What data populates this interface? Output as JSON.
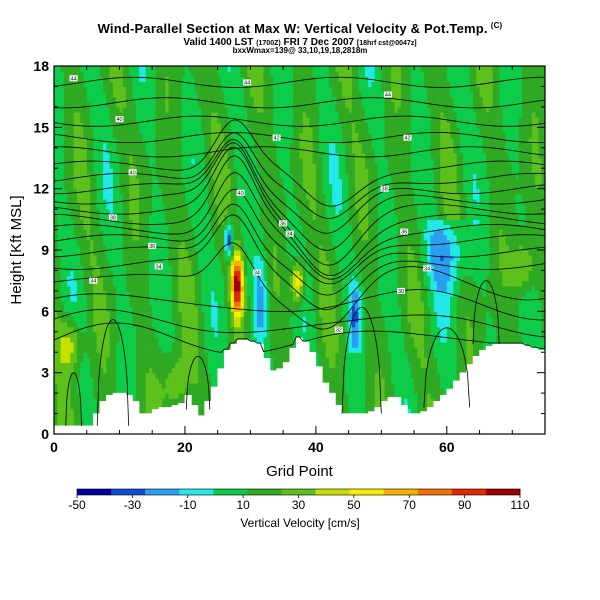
{
  "title": {
    "main": "Wind-Parallel Section at Max W: Vertical Velocity & Pot.Temp.",
    "unit": "(C)",
    "valid_prefix": "Valid 1400 LST",
    "valid_z": "(1700Z)",
    "valid_date": "FRI 7 Dec 2007",
    "valid_run": "[18hrf cst@0047z]",
    "info": "bxxWmax=139@ 33,10,19,18,2818m"
  },
  "chart_data": {
    "type": "heatmap",
    "xlabel": "Grid Point",
    "ylabel": "Height [Kft MSL]",
    "xlim": [
      0,
      75
    ],
    "ylim": [
      0,
      18
    ],
    "xticks": [
      0,
      20,
      40,
      60
    ],
    "yticks": [
      0,
      3,
      6,
      9,
      12,
      15,
      18
    ],
    "colorbar": {
      "label": "Vertical Velocity [cm/s]",
      "ticks": [
        -50,
        -30,
        -10,
        10,
        30,
        50,
        70,
        90,
        110
      ],
      "range": [
        -50,
        110
      ],
      "colors": [
        "#00009e",
        "#0d4dd6",
        "#2a9ef0",
        "#22e8ea",
        "#0ccc4a",
        "#2faa22",
        "#5ec01a",
        "#c8e000",
        "#f8f000",
        "#f8b000",
        "#f07000",
        "#e02800",
        "#a00000"
      ]
    },
    "terrain_top_kft": [
      [
        0,
        0.4
      ],
      [
        1,
        0.4
      ],
      [
        2,
        0.4
      ],
      [
        3,
        0.4
      ],
      [
        4,
        0.4
      ],
      [
        5,
        0.4
      ],
      [
        6,
        1.0
      ],
      [
        7,
        1.6
      ],
      [
        8,
        1.9
      ],
      [
        9,
        2.0
      ],
      [
        10,
        2.0
      ],
      [
        11,
        1.9
      ],
      [
        12,
        1.6
      ],
      [
        13,
        1.0
      ],
      [
        14,
        1.0
      ],
      [
        15,
        1.2
      ],
      [
        16,
        1.3
      ],
      [
        17,
        1.3
      ],
      [
        18,
        1.4
      ],
      [
        19,
        1.5
      ],
      [
        20,
        1.9
      ],
      [
        21,
        1.4
      ],
      [
        22,
        0.9
      ],
      [
        23,
        1.6
      ],
      [
        24,
        2.3
      ],
      [
        25,
        3.2
      ],
      [
        26,
        4.1
      ],
      [
        27,
        4.4
      ],
      [
        28,
        4.6
      ],
      [
        29,
        4.6
      ],
      [
        30,
        4.5
      ],
      [
        31,
        4.4
      ],
      [
        32,
        3.7
      ],
      [
        33,
        3.1
      ],
      [
        34,
        3.2
      ],
      [
        35,
        3.5
      ],
      [
        36,
        4.2
      ],
      [
        37,
        4.7
      ],
      [
        38,
        4.5
      ],
      [
        39,
        4.0
      ],
      [
        40,
        3.3
      ],
      [
        41,
        2.5
      ],
      [
        42,
        2.0
      ],
      [
        43,
        1.4
      ],
      [
        44,
        1.0
      ],
      [
        45,
        1.0
      ],
      [
        46,
        1.0
      ],
      [
        47,
        1.0
      ],
      [
        48,
        1.1
      ],
      [
        49,
        1.3
      ],
      [
        50,
        1.6
      ],
      [
        51,
        1.8
      ],
      [
        52,
        1.8
      ],
      [
        53,
        1.4
      ],
      [
        54,
        1.0
      ],
      [
        55,
        1.0
      ],
      [
        56,
        1.1
      ],
      [
        57,
        1.3
      ],
      [
        58,
        1.6
      ],
      [
        59,
        1.9
      ],
      [
        60,
        2.2
      ],
      [
        61,
        2.6
      ],
      [
        62,
        3.0
      ],
      [
        63,
        3.4
      ],
      [
        64,
        3.8
      ],
      [
        65,
        4.1
      ],
      [
        66,
        4.3
      ],
      [
        67,
        4.4
      ],
      [
        68,
        4.4
      ],
      [
        69,
        4.4
      ],
      [
        70,
        4.4
      ],
      [
        71,
        4.4
      ],
      [
        72,
        4.3
      ],
      [
        73,
        4.2
      ],
      [
        74,
        4.1
      ],
      [
        75,
        4.1
      ]
    ],
    "updraft_cores": [
      {
        "x": 28.0,
        "y": 7.3,
        "w_max": 105
      },
      {
        "x": 37.2,
        "y": 7.4,
        "w_max": 70
      },
      {
        "x": 2.5,
        "y": 4.4,
        "w_max": 50
      },
      {
        "x": 18.6,
        "y": 2.5,
        "w_max": 45
      },
      {
        "x": 71.8,
        "y": 8.2,
        "w_max": 48
      }
    ],
    "theta_contour_labels": [
      "44",
      "44",
      "44",
      "40",
      "42",
      "42",
      "40",
      "40",
      "38",
      "36",
      "38",
      "36",
      "36",
      "34",
      "34",
      "34",
      "34",
      "34",
      "30",
      "32"
    ]
  }
}
